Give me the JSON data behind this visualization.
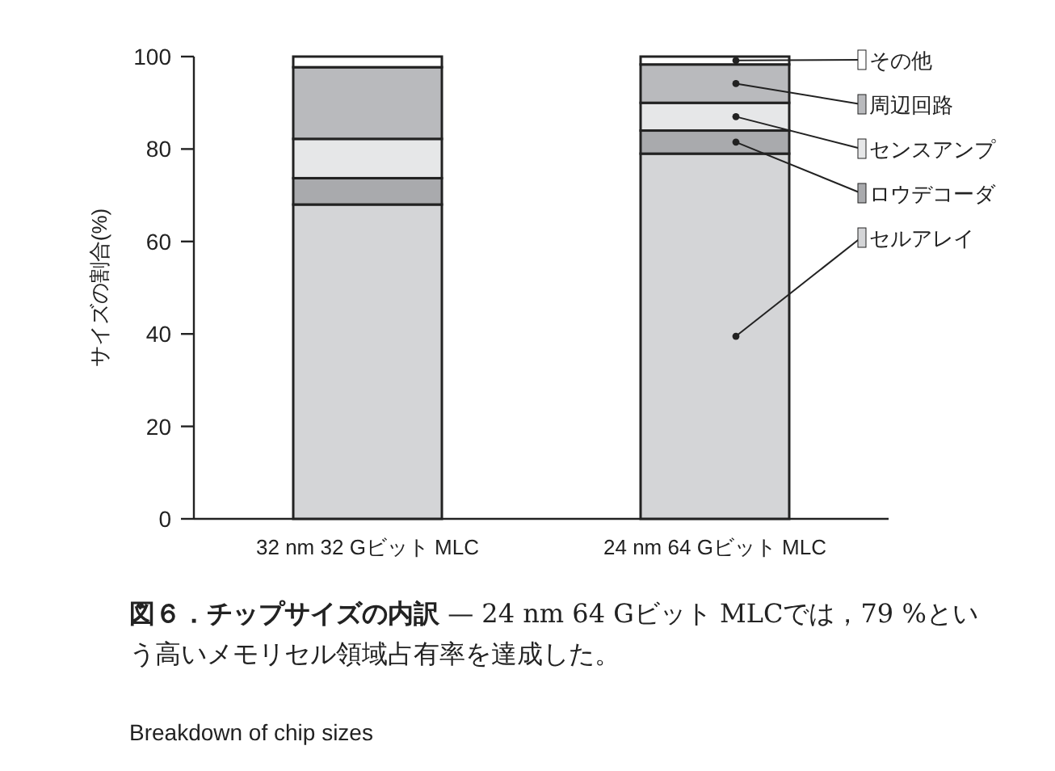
{
  "chart_data": {
    "type": "bar",
    "stacked": true,
    "title": "図６．チップサイズの内訳",
    "subtitle": "— 24 nm 64 Gビット MLCでは，79 %という高いメモリセル領域占有率を達成した。",
    "annotations": [
      "Breakdown of chip sizes"
    ],
    "ylabel": "サイズの割合(%)",
    "categories": [
      "32 nm 32 Gビット MLC",
      "24 nm 64 Gビット MLC"
    ],
    "series": [
      {
        "name": "セルアレイ",
        "color": "#d4d5d7",
        "values": [
          68,
          79
        ]
      },
      {
        "name": "ロウデコーダ",
        "color": "#a9aaad",
        "values": [
          5.7,
          5
        ]
      },
      {
        "name": "センスアンプ",
        "color": "#e6e7e8",
        "values": [
          8.5,
          6
        ]
      },
      {
        "name": "周辺回路",
        "color": "#b9babd",
        "values": [
          15.5,
          8.3
        ]
      },
      {
        "name": "その他",
        "color": "#ffffff",
        "values": [
          2.3,
          1.7
        ]
      }
    ],
    "ylim": [
      0,
      100
    ],
    "yticks": [
      0,
      20,
      40,
      60,
      80,
      100
    ],
    "legend": "right",
    "grid": false
  }
}
